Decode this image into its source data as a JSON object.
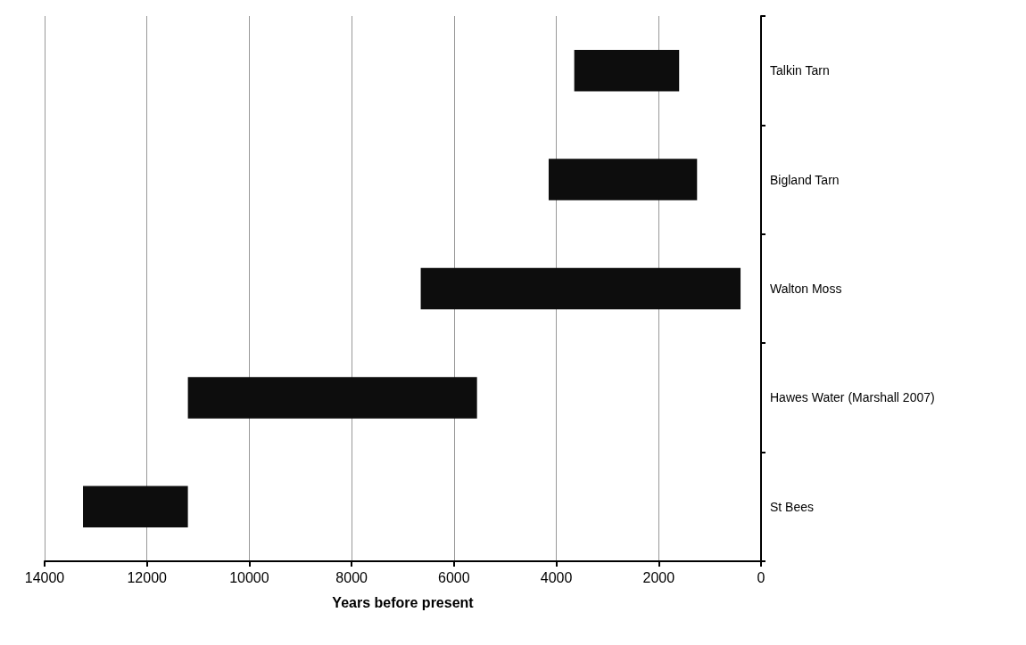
{
  "chart_data": {
    "type": "bar",
    "orientation": "horizontal",
    "xlabel": "Years before present",
    "categories": [
      "Talkin Tarn",
      "Bigland Tarn",
      "Walton Moss",
      "Hawes Water (Marshall 2007)",
      "St Bees"
    ],
    "base": [
      1600,
      1250,
      400,
      5550,
      11200
    ],
    "values": [
      2050,
      2900,
      6250,
      5650,
      2050
    ],
    "color": "#0d0d0d",
    "xlim": [
      14000,
      0
    ],
    "xticks": [
      14000,
      12000,
      10000,
      8000,
      6000,
      4000,
      2000,
      0
    ],
    "grid": "x"
  }
}
